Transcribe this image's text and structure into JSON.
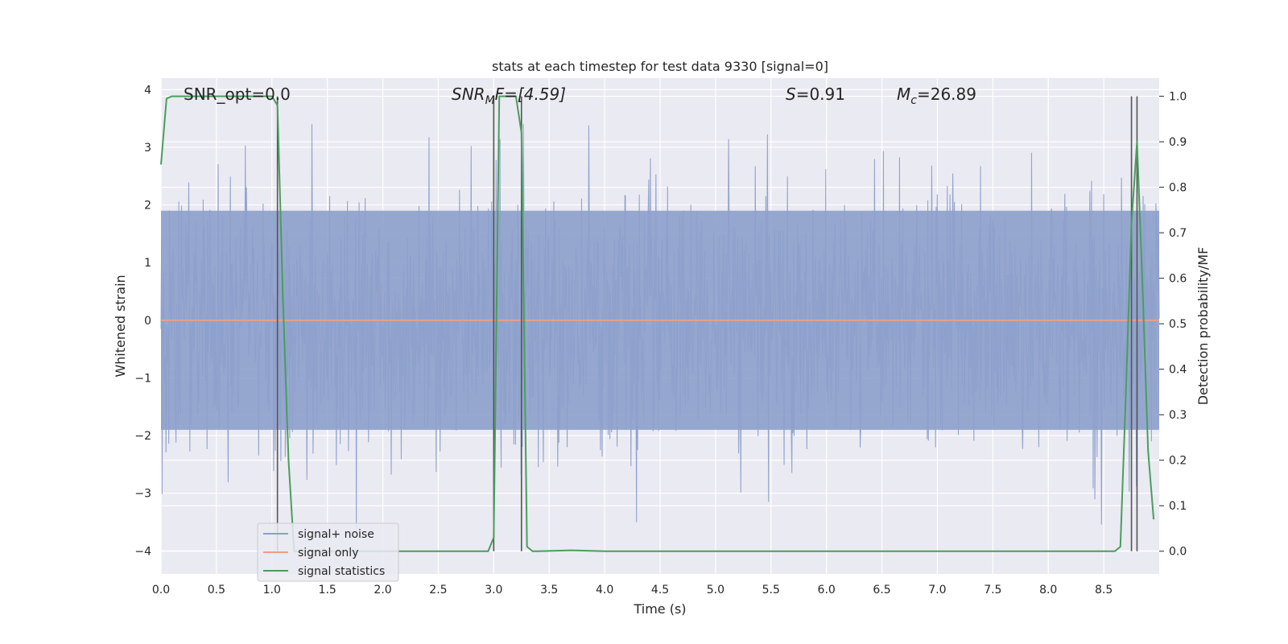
{
  "chart_data": {
    "type": "line",
    "title": "stats at each timestep for test data 9330 [signal=0]",
    "xlabel": "Time (s)",
    "ylabel_left": "Whitened strain",
    "ylabel_right": "Detection probability/MF",
    "xlim": [
      0.0,
      9.0
    ],
    "ylim_left": [
      -4.4,
      4.2
    ],
    "ylim_right": [
      -0.05,
      1.04
    ],
    "x_ticks": [
      "0.0",
      "0.5",
      "1.0",
      "1.5",
      "2.0",
      "2.5",
      "3.0",
      "3.5",
      "4.0",
      "4.5",
      "5.0",
      "5.5",
      "6.0",
      "6.5",
      "7.0",
      "7.5",
      "8.0",
      "8.5"
    ],
    "y_ticks_left": [
      "4",
      "3",
      "2",
      "1",
      "0",
      "−1",
      "−2",
      "−3",
      "−4"
    ],
    "y_ticks_right": [
      "1.0",
      "0.9",
      "0.8",
      "0.7",
      "0.6",
      "0.5",
      "0.4",
      "0.3",
      "0.2",
      "0.1",
      "0.0"
    ],
    "grid": true,
    "legend_position": "lower-left",
    "annotations": {
      "snr_opt": "SNR_opt=0.0",
      "snr_mf_main": "SNR",
      "snr_mf_sub": "M",
      "snr_mf_rest": "F=[4.59]",
      "s_var": "S",
      "s_val": "=0.91",
      "mc_var": "M",
      "mc_sub": "c",
      "mc_val": "=26.89"
    },
    "series": [
      {
        "name": "signal+ noise",
        "color": "#8da0cb",
        "axis": "left",
        "description_stats": {
          "amplitude_band": [
            -1.9,
            1.9
          ],
          "peak_range": [
            -4.0,
            3.4
          ]
        },
        "samples": 1800,
        "seed": 9330
      },
      {
        "name": "signal only",
        "color": "#e8a086",
        "axis": "left",
        "x": [
          0.0,
          9.0
        ],
        "y": [
          0.0,
          0.0
        ]
      },
      {
        "name": "signal statistics",
        "color": "#4a9e5c",
        "axis": "right",
        "x": [
          0.0,
          0.05,
          0.1,
          0.2,
          0.5,
          1.0,
          1.05,
          1.1,
          1.15,
          1.2,
          2.95,
          3.0,
          3.05,
          3.1,
          3.2,
          3.25,
          3.3,
          3.35,
          3.4,
          3.7,
          4.0,
          4.1,
          8.6,
          8.65,
          8.7,
          8.75,
          8.8,
          8.85,
          8.9,
          8.95
        ],
        "y": [
          0.85,
          0.995,
          1.0,
          1.0,
          1.0,
          1.0,
          0.98,
          0.55,
          0.2,
          0.0,
          0.0,
          0.03,
          1.0,
          1.0,
          1.0,
          0.92,
          0.01,
          0.0,
          0.0,
          0.002,
          0.0,
          0.0,
          0.0,
          0.01,
          0.35,
          0.72,
          0.9,
          0.58,
          0.22,
          0.07
        ]
      }
    ],
    "vertical_lines_x": [
      1.05,
      3.0,
      3.25,
      8.75,
      8.8
    ],
    "colors": {
      "plot_bg": "#eaeaf2",
      "grid": "#ffffff",
      "vline": "#555555"
    }
  }
}
